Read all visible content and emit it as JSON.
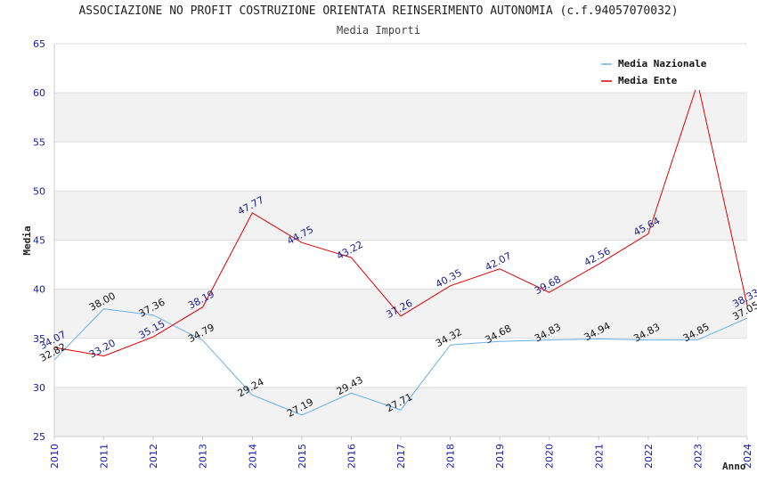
{
  "title": "ASSOCIAZIONE NO PROFIT COSTRUZIONE ORIENTATA REINSERIMENTO AUTONOMIA (c.f.94057070032)",
  "subtitle": "Media Importi",
  "chart_data": {
    "type": "line",
    "title": "ASSOCIAZIONE NO PROFIT COSTRUZIONE ORIENTATA REINSERIMENTO AUTONOMIA (c.f.94057070032)",
    "subtitle": "Media Importi",
    "xlabel": "Anno",
    "ylabel": "Media",
    "ylim": [
      25,
      65
    ],
    "yticks": [
      25,
      30,
      35,
      40,
      45,
      50,
      55,
      60,
      65
    ],
    "grid": true,
    "legend_position": "top-right",
    "x": [
      "2010",
      "2011",
      "2012",
      "2013",
      "2014",
      "2015",
      "2016",
      "2017",
      "2018",
      "2019",
      "2020",
      "2021",
      "2022",
      "2023",
      "2024"
    ],
    "series": [
      {
        "name": "Media Nazionale",
        "color": "#6aaee8",
        "values": [
          32.82,
          38.0,
          37.36,
          34.79,
          29.24,
          27.19,
          29.43,
          27.71,
          34.32,
          34.68,
          34.83,
          34.94,
          34.83,
          34.85,
          37.05
        ],
        "labels": [
          "32.82",
          "38.00",
          "37.36",
          "34.79",
          "29.24",
          "27.19",
          "29.43",
          "27.71",
          "34.32",
          "34.68",
          "34.83",
          "34.94",
          "34.83",
          "34.85",
          "37.05"
        ]
      },
      {
        "name": "Media Ente",
        "color": "#e00000",
        "values": [
          34.07,
          33.2,
          35.15,
          38.19,
          47.77,
          44.75,
          43.22,
          37.26,
          40.35,
          42.07,
          39.68,
          42.56,
          45.64,
          61.0,
          38.33
        ],
        "labels": [
          "34.07",
          "33.20",
          "35.15",
          "38.19",
          "47.77",
          "44.75",
          "43.22",
          "37.26",
          "40.35",
          "42.07",
          "39.68",
          "42.56",
          "45.64",
          "",
          "38.33"
        ]
      }
    ]
  }
}
